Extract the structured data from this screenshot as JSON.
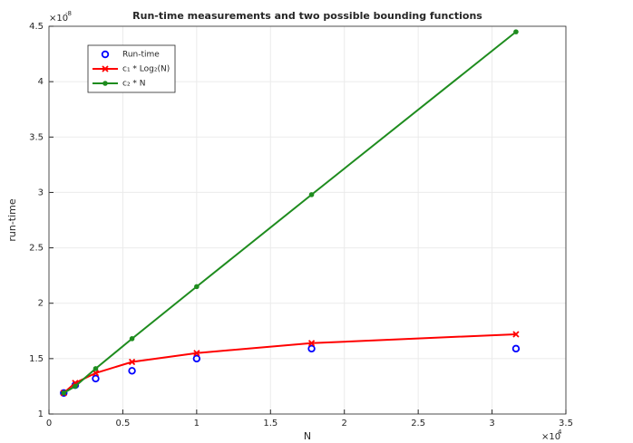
{
  "chart_data": {
    "type": "line",
    "title": "Run-time measurements and two possible bounding functions",
    "x_label": "N",
    "y_label": "run-time",
    "x_multiplier": "×10",
    "x_multiplier_exponent": "4",
    "y_multiplier": "×10",
    "y_multiplier_exponent": "-8",
    "x": [
      0.1,
      0.1778,
      0.3162,
      0.5623,
      1,
      1.778,
      3.162
    ],
    "series": [
      {
        "name": "Run-time",
        "color": "#0000ff",
        "marker": "o",
        "line": false,
        "values": [
          1.19,
          1.26,
          1.32,
          1.39,
          1.5,
          1.59,
          1.59
        ]
      },
      {
        "name": "c₁ * Log₂(N)",
        "color": "#ff0000",
        "marker": "x",
        "line": true,
        "values": [
          1.19,
          1.28,
          1.37,
          1.47,
          1.55,
          1.64,
          1.72
        ]
      },
      {
        "name": "c₂ * N",
        "color": "#1e8c1e",
        "marker": ".",
        "line": true,
        "values": [
          1.19,
          1.25,
          1.41,
          1.68,
          2.15,
          2.98,
          4.45
        ]
      }
    ],
    "xlim": [
      0,
      3.5
    ],
    "xticks": [
      0,
      0.5,
      1,
      1.5,
      2,
      2.5,
      3,
      3.5
    ],
    "ylim": [
      1,
      4.5
    ],
    "yticks": [
      1,
      1.5,
      2,
      2.5,
      3,
      3.5,
      4,
      4.5
    ],
    "grid": true,
    "legend": "upper-left"
  }
}
